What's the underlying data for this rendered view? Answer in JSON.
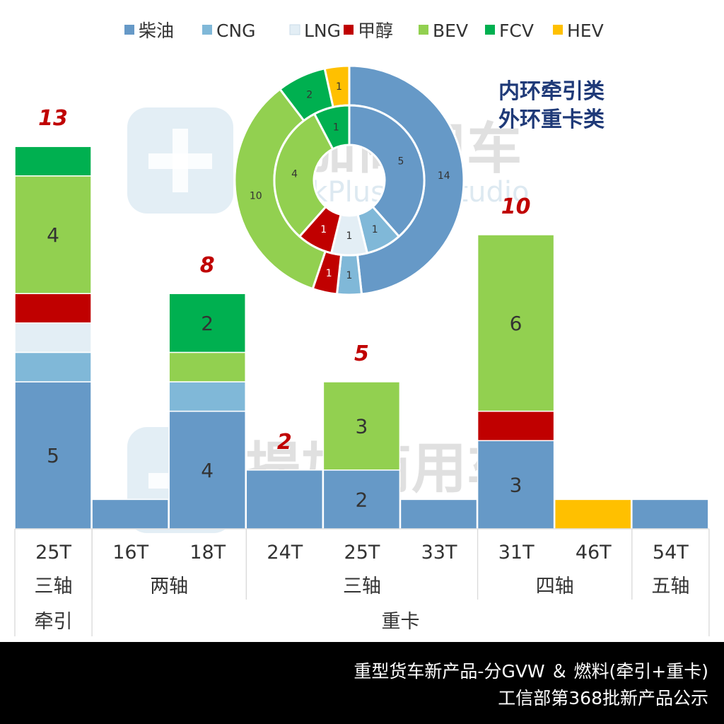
{
  "legend": [
    {
      "name": "柴油",
      "color": "#6699c7"
    },
    {
      "name": "CNG",
      "color": "#80b8d8"
    },
    {
      "name": "LNG",
      "color": "#e3eef5"
    },
    {
      "name": "甲醇",
      "color": "#c00000"
    },
    {
      "name": "BEV",
      "color": "#92d050"
    },
    {
      "name": "FCV",
      "color": "#00b050"
    },
    {
      "name": "HEV",
      "color": "#ffc000"
    }
  ],
  "watermark": {
    "cn": "提加商用车",
    "en": "TruckPlus CV studio"
  },
  "donut_note": [
    "内环牵引类",
    "外环重卡类"
  ],
  "footer": {
    "line1": "重型货车新产品-分GVW ＆ 燃料(牵引+重卡)",
    "line2": "工信部第368批新产品公示"
  },
  "chart_data": [
    {
      "type": "bar",
      "stacked": true,
      "series_order": [
        "柴油",
        "CNG",
        "LNG",
        "甲醇",
        "BEV",
        "FCV",
        "HEV"
      ],
      "categories": [
        {
          "weight": "25T",
          "axle": "三轴",
          "group": "牵引",
          "segments": [
            5,
            1,
            1,
            1,
            4,
            1,
            0
          ],
          "total": "13"
        },
        {
          "weight": "16T",
          "axle": "两轴",
          "group": "重卡",
          "segments": [
            1,
            0,
            0,
            0,
            0,
            0,
            0
          ],
          "total": ""
        },
        {
          "weight": "18T",
          "axle": "两轴",
          "group": "重卡",
          "segments": [
            4,
            1,
            0,
            0,
            1,
            2,
            0
          ],
          "total": "8"
        },
        {
          "weight": "24T",
          "axle": "三轴",
          "group": "重卡",
          "segments": [
            2,
            0,
            0,
            0,
            0,
            0,
            0
          ],
          "total": "2"
        },
        {
          "weight": "25T",
          "axle": "三轴",
          "group": "重卡",
          "segments": [
            2,
            0,
            0,
            0,
            3,
            0,
            0
          ],
          "total": "5"
        },
        {
          "weight": "33T",
          "axle": "三轴",
          "group": "重卡",
          "segments": [
            1,
            0,
            0,
            0,
            0,
            0,
            0
          ],
          "total": ""
        },
        {
          "weight": "31T",
          "axle": "四轴",
          "group": "重卡",
          "segments": [
            3,
            0,
            0,
            1,
            6,
            0,
            0
          ],
          "total": "10"
        },
        {
          "weight": "46T",
          "axle": "四轴",
          "group": "重卡",
          "segments": [
            0,
            0,
            0,
            0,
            0,
            0,
            1
          ],
          "total": ""
        },
        {
          "weight": "54T",
          "axle": "五轴",
          "group": "重卡",
          "segments": [
            1,
            0,
            0,
            0,
            0,
            0,
            0
          ],
          "total": ""
        }
      ],
      "segment_labels_shown": [
        {
          "category": 0,
          "series": "柴油",
          "text": "5"
        },
        {
          "category": 0,
          "series": "BEV",
          "text": "4"
        },
        {
          "category": 2,
          "series": "柴油",
          "text": "4"
        },
        {
          "category": 2,
          "series": "FCV",
          "text": "2"
        },
        {
          "category": 4,
          "series": "柴油",
          "text": "2"
        },
        {
          "category": 4,
          "series": "BEV",
          "text": "3"
        },
        {
          "category": 6,
          "series": "柴油",
          "text": "3"
        },
        {
          "category": 6,
          "series": "BEV",
          "text": "6"
        }
      ],
      "axle_groups": [
        {
          "label": "三轴",
          "from": 0,
          "to": 0
        },
        {
          "label": "两轴",
          "from": 1,
          "to": 2
        },
        {
          "label": "三轴",
          "from": 3,
          "to": 5
        },
        {
          "label": "四轴",
          "from": 6,
          "to": 7
        },
        {
          "label": "五轴",
          "from": 8,
          "to": 8
        }
      ],
      "type_groups": [
        {
          "label": "牵引",
          "from": 0,
          "to": 0
        },
        {
          "label": "重卡",
          "from": 1,
          "to": 8
        }
      ],
      "ylim": [
        0,
        13
      ]
    },
    {
      "type": "pie",
      "donut": true,
      "inner": {
        "ring": "牵引类",
        "series": [
          "柴油",
          "CNG",
          "LNG",
          "甲醇",
          "BEV",
          "FCV",
          "HEV"
        ],
        "values": [
          5,
          1,
          1,
          1,
          4,
          1,
          0
        ]
      },
      "outer": {
        "ring": "重卡类",
        "series": [
          "柴油",
          "CNG",
          "LNG",
          "甲醇",
          "BEV",
          "FCV",
          "HEV"
        ],
        "values": [
          14,
          1,
          0,
          1,
          10,
          2,
          1
        ]
      }
    }
  ]
}
